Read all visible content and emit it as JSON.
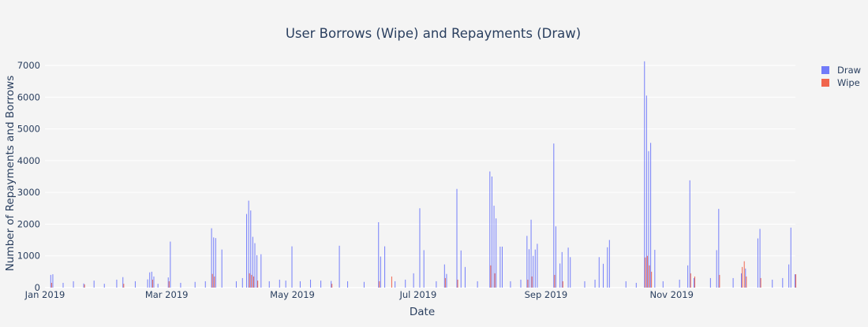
{
  "chart_data": {
    "type": "bar",
    "title": "User Borrows (Wipe) and Repayments (Draw)",
    "xlabel": "Date",
    "ylabel": "Number of Repayments and Borrows",
    "x_range": [
      "2019-01-01",
      "2019-12-31"
    ],
    "ylim": [
      0,
      7200
    ],
    "y_ticks": [
      0,
      1000,
      2000,
      3000,
      4000,
      5000,
      6000,
      7000
    ],
    "y_tick_labels": [
      "0",
      "1000",
      "2000",
      "3000",
      "4000",
      "5000",
      "6000",
      "7000"
    ],
    "x_ticks": [
      "2019-01-01",
      "2019-03-01",
      "2019-05-01",
      "2019-07-01",
      "2019-09-01",
      "2019-11-01"
    ],
    "x_tick_labels": [
      "Jan 2019",
      "Mar 2019",
      "May 2019",
      "Jul 2019",
      "Sep 2019",
      "Nov 2019"
    ],
    "grid": true,
    "barmode": "group",
    "legend_position": "top-right",
    "colors": {
      "Draw": "#636efa",
      "Wipe": "#ef553b"
    },
    "series": [
      {
        "name": "Draw",
        "points": [
          [
            "2019-01-04",
            400
          ],
          [
            "2019-01-05",
            420
          ],
          [
            "2019-01-10",
            150
          ],
          [
            "2019-01-15",
            200
          ],
          [
            "2019-01-20",
            130
          ],
          [
            "2019-01-25",
            220
          ],
          [
            "2019-01-30",
            120
          ],
          [
            "2019-02-05",
            250
          ],
          [
            "2019-02-08",
            330
          ],
          [
            "2019-02-14",
            200
          ],
          [
            "2019-02-20",
            260
          ],
          [
            "2019-02-25",
            120
          ],
          [
            "2019-02-21",
            480
          ],
          [
            "2019-02-22",
            500
          ],
          [
            "2019-02-23",
            350
          ],
          [
            "2019-03-02",
            320
          ],
          [
            "2019-03-03",
            1450
          ],
          [
            "2019-03-08",
            150
          ],
          [
            "2019-03-15",
            180
          ],
          [
            "2019-03-20",
            200
          ],
          [
            "2019-03-23",
            1870
          ],
          [
            "2019-03-24",
            1580
          ],
          [
            "2019-03-25",
            1560
          ],
          [
            "2019-03-28",
            1200
          ],
          [
            "2019-04-04",
            200
          ],
          [
            "2019-04-07",
            300
          ],
          [
            "2019-04-09",
            2320
          ],
          [
            "2019-04-10",
            2740
          ],
          [
            "2019-04-11",
            2430
          ],
          [
            "2019-04-12",
            1600
          ],
          [
            "2019-04-13",
            1400
          ],
          [
            "2019-04-14",
            1020
          ],
          [
            "2019-04-16",
            1050
          ],
          [
            "2019-04-20",
            200
          ],
          [
            "2019-04-25",
            250
          ],
          [
            "2019-04-28",
            220
          ],
          [
            "2019-05-01",
            1300
          ],
          [
            "2019-05-05",
            200
          ],
          [
            "2019-05-10",
            250
          ],
          [
            "2019-05-15",
            220
          ],
          [
            "2019-05-20",
            210
          ],
          [
            "2019-05-24",
            1320
          ],
          [
            "2019-05-28",
            200
          ],
          [
            "2019-06-05",
            180
          ],
          [
            "2019-06-12",
            2060
          ],
          [
            "2019-06-13",
            980
          ],
          [
            "2019-06-15",
            1300
          ],
          [
            "2019-06-20",
            200
          ],
          [
            "2019-06-25",
            250
          ],
          [
            "2019-06-29",
            450
          ],
          [
            "2019-07-02",
            2500
          ],
          [
            "2019-07-04",
            1180
          ],
          [
            "2019-07-10",
            200
          ],
          [
            "2019-07-14",
            730
          ],
          [
            "2019-07-15",
            430
          ],
          [
            "2019-07-20",
            3110
          ],
          [
            "2019-07-22",
            1170
          ],
          [
            "2019-07-24",
            650
          ],
          [
            "2019-07-30",
            200
          ],
          [
            "2019-08-05",
            3660
          ],
          [
            "2019-08-06",
            3500
          ],
          [
            "2019-08-07",
            2580
          ],
          [
            "2019-08-08",
            2180
          ],
          [
            "2019-08-10",
            1290
          ],
          [
            "2019-08-11",
            1290
          ],
          [
            "2019-08-15",
            200
          ],
          [
            "2019-08-20",
            250
          ],
          [
            "2019-08-23",
            1630
          ],
          [
            "2019-08-24",
            1210
          ],
          [
            "2019-08-25",
            2140
          ],
          [
            "2019-08-26",
            1000
          ],
          [
            "2019-08-27",
            1200
          ],
          [
            "2019-08-28",
            1380
          ],
          [
            "2019-09-05",
            4540
          ],
          [
            "2019-09-06",
            1930
          ],
          [
            "2019-09-08",
            760
          ],
          [
            "2019-09-09",
            1120
          ],
          [
            "2019-09-12",
            1260
          ],
          [
            "2019-09-13",
            960
          ],
          [
            "2019-09-20",
            200
          ],
          [
            "2019-09-25",
            250
          ],
          [
            "2019-09-27",
            960
          ],
          [
            "2019-09-29",
            750
          ],
          [
            "2019-10-01",
            1270
          ],
          [
            "2019-10-02",
            1500
          ],
          [
            "2019-10-10",
            200
          ],
          [
            "2019-10-15",
            150
          ],
          [
            "2019-10-19",
            7130
          ],
          [
            "2019-10-20",
            6050
          ],
          [
            "2019-10-21",
            4300
          ],
          [
            "2019-10-22",
            4560
          ],
          [
            "2019-10-24",
            1190
          ],
          [
            "2019-10-28",
            200
          ],
          [
            "2019-11-05",
            250
          ],
          [
            "2019-11-09",
            700
          ],
          [
            "2019-11-10",
            3380
          ],
          [
            "2019-11-12",
            300
          ],
          [
            "2019-11-20",
            300
          ],
          [
            "2019-11-23",
            1180
          ],
          [
            "2019-11-24",
            2480
          ],
          [
            "2019-12-01",
            300
          ],
          [
            "2019-12-05",
            450
          ],
          [
            "2019-12-07",
            600
          ],
          [
            "2019-12-13",
            1550
          ],
          [
            "2019-12-14",
            1850
          ],
          [
            "2019-12-20",
            250
          ],
          [
            "2019-12-25",
            300
          ],
          [
            "2019-12-28",
            730
          ],
          [
            "2019-12-29",
            1890
          ],
          [
            "2019-12-31",
            420
          ]
        ]
      },
      {
        "name": "Wipe",
        "points": [
          [
            "2019-01-04",
            150
          ],
          [
            "2019-01-20",
            100
          ],
          [
            "2019-02-08",
            120
          ],
          [
            "2019-02-22",
            250
          ],
          [
            "2019-03-02",
            200
          ],
          [
            "2019-03-23",
            430
          ],
          [
            "2019-03-24",
            350
          ],
          [
            "2019-04-10",
            450
          ],
          [
            "2019-04-11",
            400
          ],
          [
            "2019-04-12",
            350
          ],
          [
            "2019-04-14",
            220
          ],
          [
            "2019-05-20",
            120
          ],
          [
            "2019-06-12",
            200
          ],
          [
            "2019-06-18",
            350
          ],
          [
            "2019-07-14",
            300
          ],
          [
            "2019-07-20",
            250
          ],
          [
            "2019-08-05",
            700
          ],
          [
            "2019-08-07",
            450
          ],
          [
            "2019-08-23",
            250
          ],
          [
            "2019-08-25",
            350
          ],
          [
            "2019-09-05",
            400
          ],
          [
            "2019-09-09",
            200
          ],
          [
            "2019-10-19",
            950
          ],
          [
            "2019-10-20",
            1000
          ],
          [
            "2019-10-21",
            700
          ],
          [
            "2019-10-22",
            500
          ],
          [
            "2019-11-10",
            450
          ],
          [
            "2019-11-12",
            350
          ],
          [
            "2019-11-24",
            400
          ],
          [
            "2019-12-05",
            650
          ],
          [
            "2019-12-06",
            830
          ],
          [
            "2019-12-07",
            350
          ],
          [
            "2019-12-14",
            300
          ],
          [
            "2019-12-31",
            420
          ]
        ]
      }
    ]
  }
}
